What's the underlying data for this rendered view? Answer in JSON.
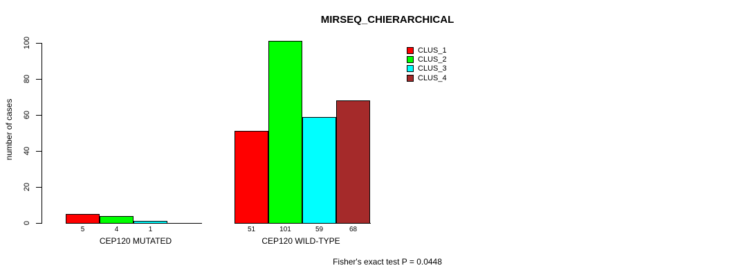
{
  "chart_data": {
    "type": "bar",
    "title": "MIRSEQ_CHIERARCHICAL",
    "ylabel": "number of cases",
    "xlabel": "",
    "ylim": [
      0,
      100
    ],
    "yticks": [
      0,
      20,
      40,
      60,
      80,
      100
    ],
    "grid": false,
    "legend_position": "top-right",
    "categories": [
      "CEP120 MUTATED",
      "CEP120 WILD-TYPE"
    ],
    "series": [
      {
        "name": "CLUS_1",
        "color": "#FF0000"
      },
      {
        "name": "CLUS_2",
        "color": "#00FF00"
      },
      {
        "name": "CLUS_3",
        "color": "#00FFFF"
      },
      {
        "name": "CLUS_4",
        "color": "#A52A2A"
      }
    ],
    "groups": [
      {
        "label": "CEP120 MUTATED",
        "values": [
          5,
          4,
          1,
          0
        ],
        "bar_labels": [
          "5",
          "4",
          "1",
          ""
        ]
      },
      {
        "label": "CEP120 WILD-TYPE",
        "values": [
          51,
          101,
          59,
          68
        ],
        "bar_labels": [
          "51",
          "101",
          "59",
          "68"
        ]
      }
    ],
    "annotation": "Fisher's exact test P = 0.0448"
  },
  "colors": {
    "axis": "#000000",
    "background": "#FFFFFF",
    "text": "#000000"
  }
}
